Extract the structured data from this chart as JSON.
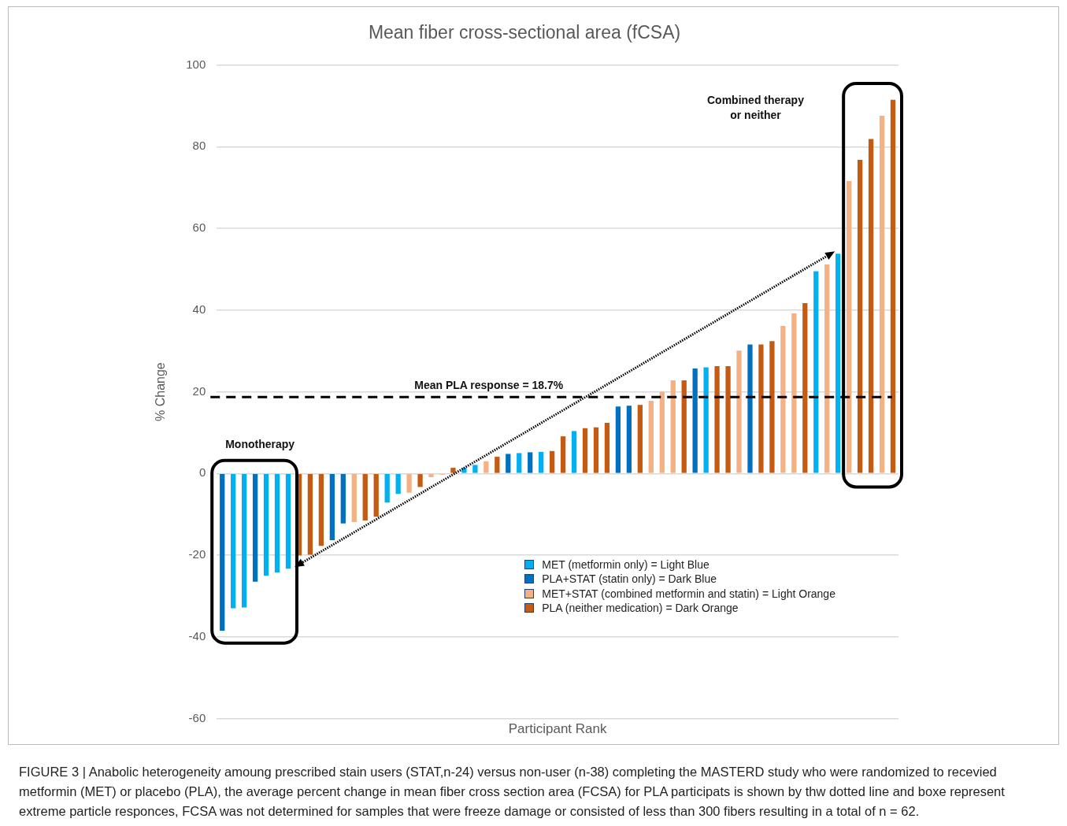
{
  "chart_data": {
    "type": "bar",
    "title": "Mean fiber cross-sectional area (fCSA)",
    "xlabel": "Participant Rank",
    "ylabel": "% Change",
    "categories": [
      null,
      null,
      null,
      null,
      null,
      null,
      null,
      null,
      null,
      null,
      null,
      null,
      null,
      null,
      null,
      null,
      null,
      null,
      null,
      null,
      null,
      null,
      null,
      null,
      null,
      null,
      null,
      null,
      null,
      null,
      null,
      null,
      null,
      null,
      null,
      null,
      null,
      null,
      null,
      null,
      null,
      null,
      null,
      null,
      null,
      null,
      null,
      null,
      null,
      null,
      null,
      null,
      null,
      null,
      null,
      null,
      null,
      null,
      null,
      null,
      null,
      null
    ],
    "series": [
      {
        "name": "MET (metformin only) = Light Blue",
        "color": "#00b0f0",
        "values": [
          null,
          -33.0,
          -32.8,
          null,
          -25.0,
          -24.2,
          -23.3,
          null,
          null,
          null,
          null,
          null,
          null,
          null,
          null,
          -7.1,
          -5.0,
          null,
          null,
          null,
          null,
          null,
          1.4,
          2.1,
          null,
          null,
          null,
          5.0,
          null,
          5.3,
          null,
          null,
          10.4,
          null,
          null,
          null,
          null,
          null,
          null,
          null,
          null,
          null,
          null,
          null,
          26.0,
          null,
          null,
          null,
          null,
          null,
          null,
          null,
          null,
          null,
          49.5,
          null,
          53.8,
          null,
          null,
          null,
          null,
          null
        ]
      },
      {
        "name": "PLA+STAT (statin only) = Dark Blue",
        "color": "#0070c0",
        "values": [
          -38.5,
          null,
          null,
          -26.5,
          null,
          null,
          null,
          null,
          null,
          null,
          -16.3,
          -12.2,
          null,
          null,
          null,
          null,
          null,
          null,
          null,
          null,
          null,
          null,
          null,
          null,
          null,
          null,
          4.8,
          null,
          5.2,
          null,
          null,
          null,
          null,
          null,
          null,
          null,
          16.4,
          16.6,
          null,
          null,
          null,
          null,
          null,
          25.7,
          null,
          null,
          null,
          null,
          31.6,
          null,
          null,
          null,
          null,
          null,
          null,
          null,
          null,
          null,
          null,
          null,
          null,
          null
        ]
      },
      {
        "name": "MET+STAT (combined metformin and statin) = Light Orange",
        "color": "#f4b183",
        "values": [
          null,
          null,
          null,
          null,
          null,
          null,
          null,
          null,
          null,
          null,
          null,
          null,
          -11.9,
          null,
          null,
          null,
          null,
          -4.7,
          null,
          -0.9,
          -0.3,
          null,
          null,
          null,
          3.0,
          null,
          null,
          null,
          null,
          null,
          null,
          null,
          null,
          null,
          null,
          null,
          null,
          null,
          null,
          17.8,
          20.0,
          22.8,
          null,
          null,
          null,
          null,
          null,
          30.1,
          null,
          null,
          null,
          36.1,
          39.2,
          null,
          null,
          51.2,
          null,
          71.6,
          null,
          null,
          87.6,
          null
        ]
      },
      {
        "name": "PLA (neither medication) = Dark Orange",
        "color": "#c55a11",
        "values": [
          null,
          null,
          null,
          null,
          null,
          null,
          null,
          -20.1,
          -19.9,
          -17.7,
          null,
          null,
          null,
          -11.5,
          -10.6,
          null,
          null,
          null,
          -3.3,
          null,
          null,
          1.4,
          null,
          null,
          null,
          4.1,
          null,
          null,
          null,
          null,
          5.5,
          9.1,
          null,
          11.1,
          11.3,
          12.4,
          null,
          null,
          16.8,
          null,
          null,
          null,
          22.8,
          null,
          null,
          26.3,
          26.3,
          null,
          null,
          31.6,
          32.4,
          null,
          null,
          41.7,
          null,
          null,
          null,
          null,
          76.8,
          81.9,
          null,
          91.5
        ]
      }
    ],
    "ylim": [
      -60,
      100
    ],
    "yticks": [
      -60,
      -40,
      -20,
      0,
      20,
      40,
      60,
      80,
      100
    ],
    "grid": "y",
    "legend": "bottom",
    "ref_lines": [
      {
        "axis": "y",
        "value": 18.7,
        "label": "Mean PLA response = 18.7%",
        "color": "#000000",
        "line_style": "dashed"
      }
    ],
    "annotations": [
      "Monotherapy",
      "Combined therapy\nor neither",
      "FIGURE 3 | Anabolic heterogeneity amoung prescribed stain users (STAT,n-24) versus non-user (n-38) completing the MASTERD study who were randomized to recevied metformin (MET) or placebo (PLA), the average percent change in mean fiber cross section area (FCSA) for PLA participats is shown by thw dotted line and boxe represent extreme particle responces, FCSA was not determined for samples that were freeze damage or consisted of less than 300 fibers resulting in a total of n = 62."
    ]
  }
}
